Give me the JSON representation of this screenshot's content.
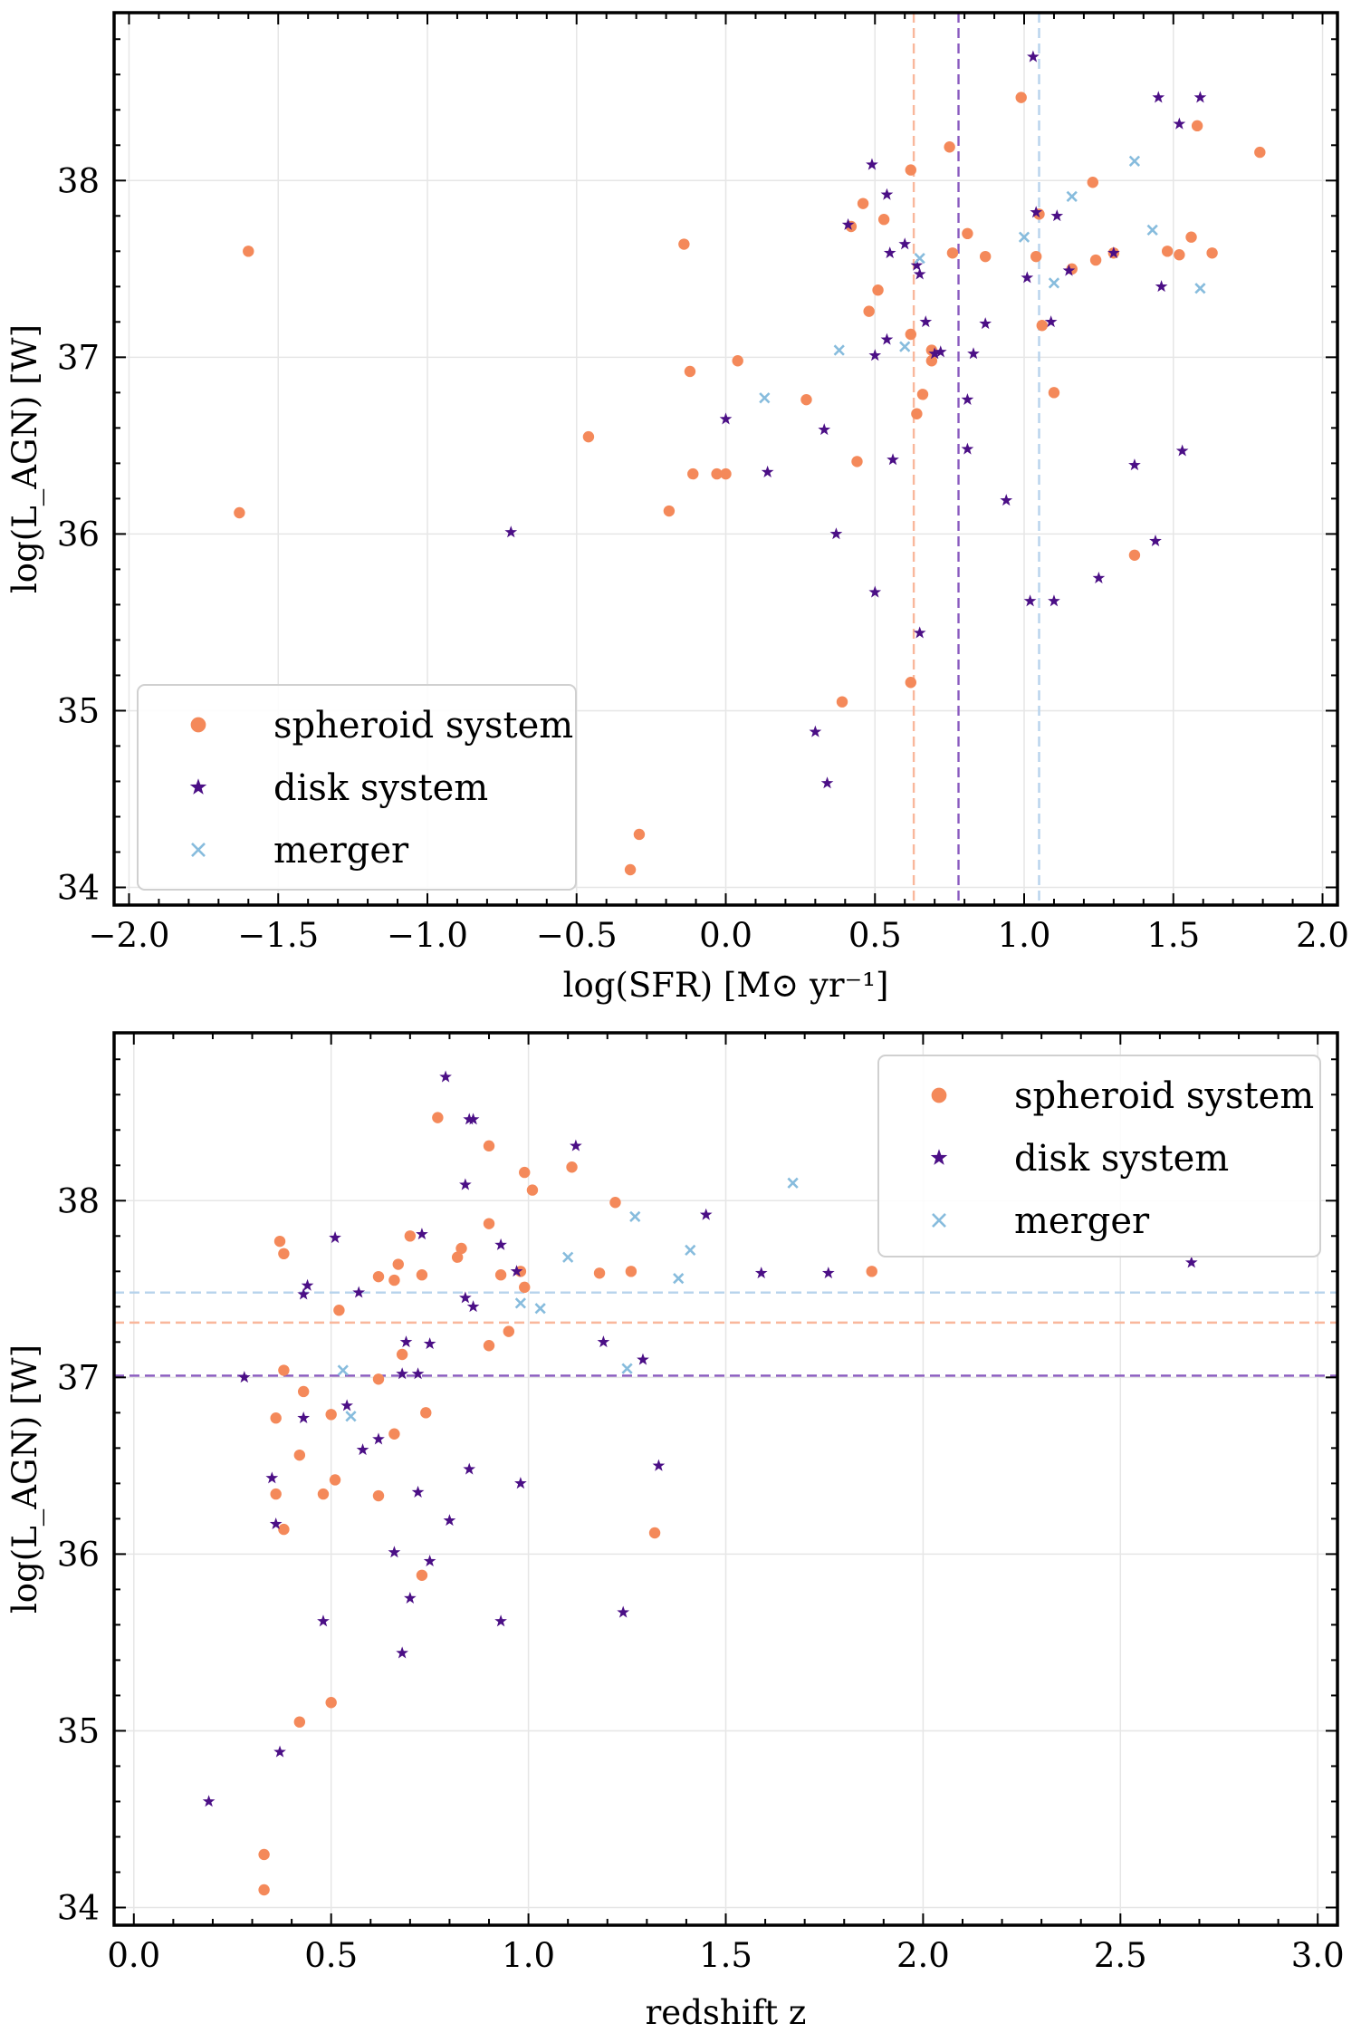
{
  "colors": {
    "spheroid": "#f4895a",
    "disk": "#4b0f86",
    "merger": "#87bcdd",
    "spheroid_line": "#f9b79c",
    "disk_line": "#8a5bbf",
    "merger_line": "#b7d3ec",
    "grid": "#e6e6e6"
  },
  "legend_labels": [
    "spheroid system",
    "disk system",
    "merger"
  ],
  "chart_data": [
    {
      "type": "scatter",
      "id": "sfr",
      "xlabel": "log(SFR) [M⊙ yr⁻¹]",
      "ylabel": "log(L_AGN) [W]",
      "xlim": [
        -2.05,
        2.05
      ],
      "ylim": [
        33.9,
        38.95
      ],
      "xticks": [
        -2.0,
        -1.5,
        -1.0,
        -0.5,
        0.0,
        0.5,
        1.0,
        1.5,
        2.0
      ],
      "xtick_labels": [
        "−2.0",
        "−1.5",
        "−1.0",
        "−0.5",
        "0.0",
        "0.5",
        "1.0",
        "1.5",
        "2.0"
      ],
      "yticks": [
        34,
        35,
        36,
        37,
        38
      ],
      "ytick_labels": [
        "34",
        "35",
        "36",
        "37",
        "38"
      ],
      "grid": true,
      "legend_position": "lower-left",
      "reference_lines": [
        {
          "orientation": "vertical",
          "series": "spheroid system",
          "value": 0.63
        },
        {
          "orientation": "vertical",
          "series": "disk system",
          "value": 0.78
        },
        {
          "orientation": "vertical",
          "series": "merger",
          "value": 1.05
        }
      ],
      "series": [
        {
          "name": "spheroid system",
          "marker": "circle",
          "points": [
            [
              -1.6,
              37.6
            ],
            [
              -1.63,
              36.12
            ],
            [
              -0.46,
              36.55
            ],
            [
              -0.14,
              37.64
            ],
            [
              -0.12,
              36.92
            ],
            [
              -0.11,
              36.34
            ],
            [
              0.04,
              36.98
            ],
            [
              -0.03,
              36.34
            ],
            [
              0.0,
              36.34
            ],
            [
              -0.19,
              36.13
            ],
            [
              0.27,
              36.76
            ],
            [
              0.39,
              35.05
            ],
            [
              0.42,
              37.74
            ],
            [
              0.44,
              36.41
            ],
            [
              0.46,
              37.87
            ],
            [
              0.48,
              37.26
            ],
            [
              0.51,
              37.38
            ],
            [
              0.53,
              37.78
            ],
            [
              0.62,
              38.06
            ],
            [
              0.62,
              37.13
            ],
            [
              0.62,
              35.16
            ],
            [
              0.64,
              36.68
            ],
            [
              0.66,
              36.79
            ],
            [
              0.69,
              37.04
            ],
            [
              0.69,
              36.98
            ],
            [
              0.75,
              38.19
            ],
            [
              0.76,
              37.59
            ],
            [
              0.81,
              37.7
            ],
            [
              0.87,
              37.57
            ],
            [
              0.99,
              38.47
            ],
            [
              1.04,
              37.57
            ],
            [
              1.05,
              37.81
            ],
            [
              1.06,
              37.18
            ],
            [
              1.1,
              36.8
            ],
            [
              1.16,
              37.5
            ],
            [
              1.23,
              37.99
            ],
            [
              1.24,
              37.55
            ],
            [
              1.3,
              37.59
            ],
            [
              1.37,
              35.88
            ],
            [
              1.48,
              37.6
            ],
            [
              1.52,
              37.58
            ],
            [
              1.56,
              37.68
            ],
            [
              1.58,
              38.31
            ],
            [
              1.63,
              37.59
            ],
            [
              1.79,
              38.16
            ],
            [
              -0.32,
              34.1
            ],
            [
              -0.29,
              34.3
            ]
          ]
        },
        {
          "name": "disk system",
          "marker": "star",
          "points": [
            [
              -0.72,
              36.01
            ],
            [
              0.0,
              36.65
            ],
            [
              0.14,
              36.35
            ],
            [
              0.3,
              34.88
            ],
            [
              0.33,
              36.59
            ],
            [
              0.34,
              34.59
            ],
            [
              0.41,
              37.75
            ],
            [
              0.49,
              38.09
            ],
            [
              0.5,
              37.01
            ],
            [
              0.5,
              35.67
            ],
            [
              0.54,
              37.1
            ],
            [
              0.54,
              37.92
            ],
            [
              0.55,
              37.59
            ],
            [
              0.56,
              36.42
            ],
            [
              0.6,
              37.64
            ],
            [
              0.64,
              37.52
            ],
            [
              0.65,
              37.47
            ],
            [
              0.65,
              35.44
            ],
            [
              0.67,
              37.2
            ],
            [
              0.7,
              37.02
            ],
            [
              0.72,
              37.03
            ],
            [
              0.81,
              36.48
            ],
            [
              0.81,
              36.76
            ],
            [
              0.83,
              37.02
            ],
            [
              0.87,
              37.19
            ],
            [
              0.94,
              36.19
            ],
            [
              1.01,
              37.45
            ],
            [
              1.02,
              35.62
            ],
            [
              1.03,
              38.7
            ],
            [
              1.04,
              37.82
            ],
            [
              1.09,
              37.2
            ],
            [
              1.1,
              35.62
            ],
            [
              1.11,
              37.8
            ],
            [
              1.15,
              37.49
            ],
            [
              1.25,
              35.75
            ],
            [
              1.3,
              37.59
            ],
            [
              1.37,
              36.39
            ],
            [
              1.44,
              35.96
            ],
            [
              1.45,
              38.47
            ],
            [
              1.46,
              37.4
            ],
            [
              1.52,
              38.32
            ],
            [
              1.53,
              36.47
            ],
            [
              1.59,
              38.47
            ],
            [
              0.37,
              36.0
            ]
          ]
        },
        {
          "name": "merger",
          "marker": "x",
          "points": [
            [
              0.13,
              36.77
            ],
            [
              0.38,
              37.04
            ],
            [
              0.6,
              37.06
            ],
            [
              0.65,
              37.56
            ],
            [
              1.0,
              37.68
            ],
            [
              1.1,
              37.42
            ],
            [
              1.16,
              37.91
            ],
            [
              1.37,
              38.11
            ],
            [
              1.43,
              37.72
            ],
            [
              1.59,
              37.39
            ]
          ]
        }
      ]
    },
    {
      "type": "scatter",
      "id": "redshift",
      "xlabel": "redshift z",
      "ylabel": "log(L_AGN) [W]",
      "xlim": [
        -0.05,
        3.05
      ],
      "ylim": [
        33.9,
        38.95
      ],
      "xticks": [
        0.0,
        0.5,
        1.0,
        1.5,
        2.0,
        2.5,
        3.0
      ],
      "xtick_labels": [
        "0.0",
        "0.5",
        "1.0",
        "1.5",
        "2.0",
        "2.5",
        "3.0"
      ],
      "yticks": [
        34,
        35,
        36,
        37,
        38
      ],
      "ytick_labels": [
        "34",
        "35",
        "36",
        "37",
        "38"
      ],
      "grid": true,
      "legend_position": "top-right",
      "reference_lines": [
        {
          "orientation": "horizontal",
          "series": "merger",
          "value": 37.48
        },
        {
          "orientation": "horizontal",
          "series": "spheroid system",
          "value": 37.31
        },
        {
          "orientation": "horizontal",
          "series": "disk system",
          "value": 37.01
        }
      ],
      "series": [
        {
          "name": "spheroid system",
          "marker": "circle",
          "points": [
            [
              0.33,
              34.3
            ],
            [
              0.33,
              34.1
            ],
            [
              0.42,
              35.05
            ],
            [
              0.5,
              35.16
            ],
            [
              0.38,
              36.14
            ],
            [
              0.36,
              36.34
            ],
            [
              0.42,
              36.56
            ],
            [
              0.43,
              36.92
            ],
            [
              0.38,
              37.04
            ],
            [
              0.36,
              36.77
            ],
            [
              0.37,
              37.77
            ],
            [
              0.38,
              37.7
            ],
            [
              0.48,
              36.34
            ],
            [
              0.51,
              36.42
            ],
            [
              0.5,
              36.79
            ],
            [
              0.52,
              37.38
            ],
            [
              0.62,
              36.33
            ],
            [
              0.62,
              36.99
            ],
            [
              0.62,
              37.57
            ],
            [
              0.66,
              36.68
            ],
            [
              0.66,
              37.55
            ],
            [
              0.67,
              37.64
            ],
            [
              0.68,
              37.13
            ],
            [
              0.7,
              37.8
            ],
            [
              0.73,
              37.58
            ],
            [
              0.74,
              36.8
            ],
            [
              0.73,
              35.88
            ],
            [
              0.77,
              38.47
            ],
            [
              0.82,
              37.68
            ],
            [
              0.83,
              37.73
            ],
            [
              0.9,
              37.87
            ],
            [
              0.9,
              38.31
            ],
            [
              0.9,
              37.18
            ],
            [
              0.93,
              37.58
            ],
            [
              0.95,
              37.26
            ],
            [
              0.98,
              37.6
            ],
            [
              0.99,
              37.51
            ],
            [
              0.99,
              38.16
            ],
            [
              1.01,
              38.06
            ],
            [
              1.11,
              38.19
            ],
            [
              1.18,
              37.59
            ],
            [
              1.22,
              37.99
            ],
            [
              1.26,
              37.6
            ],
            [
              1.32,
              36.12
            ],
            [
              1.87,
              37.6
            ]
          ]
        },
        {
          "name": "disk system",
          "marker": "star",
          "points": [
            [
              0.19,
              34.6
            ],
            [
              0.28,
              37.0
            ],
            [
              0.35,
              36.43
            ],
            [
              0.36,
              36.17
            ],
            [
              0.37,
              34.88
            ],
            [
              0.43,
              37.47
            ],
            [
              0.44,
              37.52
            ],
            [
              0.43,
              36.77
            ],
            [
              0.48,
              35.62
            ],
            [
              0.51,
              37.79
            ],
            [
              0.54,
              36.84
            ],
            [
              0.57,
              37.48
            ],
            [
              0.58,
              36.59
            ],
            [
              0.62,
              36.65
            ],
            [
              0.66,
              36.01
            ],
            [
              0.68,
              37.02
            ],
            [
              0.68,
              35.44
            ],
            [
              0.69,
              37.2
            ],
            [
              0.7,
              35.75
            ],
            [
              0.72,
              36.35
            ],
            [
              0.72,
              37.02
            ],
            [
              0.73,
              37.81
            ],
            [
              0.75,
              37.19
            ],
            [
              0.75,
              35.96
            ],
            [
              0.79,
              38.7
            ],
            [
              0.8,
              36.19
            ],
            [
              0.84,
              37.45
            ],
            [
              0.84,
              38.09
            ],
            [
              0.85,
              36.48
            ],
            [
              0.85,
              38.46
            ],
            [
              0.86,
              38.46
            ],
            [
              0.86,
              37.4
            ],
            [
              0.93,
              35.62
            ],
            [
              0.93,
              37.75
            ],
            [
              0.97,
              37.6
            ],
            [
              0.98,
              36.4
            ],
            [
              1.12,
              38.31
            ],
            [
              1.19,
              37.2
            ],
            [
              1.24,
              35.67
            ],
            [
              1.29,
              37.1
            ],
            [
              1.33,
              36.5
            ],
            [
              1.45,
              37.92
            ],
            [
              1.59,
              37.59
            ],
            [
              1.76,
              37.59
            ],
            [
              2.68,
              37.65
            ]
          ]
        },
        {
          "name": "merger",
          "marker": "x",
          "points": [
            [
              0.53,
              37.04
            ],
            [
              0.55,
              36.78
            ],
            [
              0.98,
              37.42
            ],
            [
              1.03,
              37.39
            ],
            [
              1.1,
              37.68
            ],
            [
              1.25,
              37.05
            ],
            [
              1.27,
              37.91
            ],
            [
              1.38,
              37.56
            ],
            [
              1.41,
              37.72
            ],
            [
              1.67,
              38.1
            ]
          ]
        }
      ]
    }
  ]
}
